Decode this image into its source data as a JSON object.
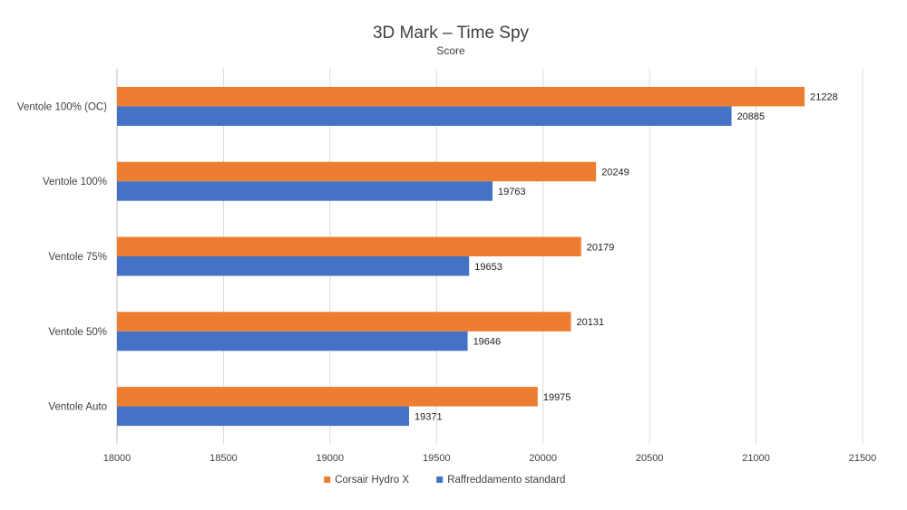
{
  "chart_data": {
    "type": "bar",
    "orientation": "horizontal",
    "title": "3D Mark – Time Spy",
    "subtitle": "Score",
    "categories": [
      "Ventole 100% (OC)",
      "Ventole 100%",
      "Ventole 75%",
      "Ventole 50%",
      "Ventole Auto"
    ],
    "series": [
      {
        "name": "Corsair Hydro X",
        "color": "#ED7D31",
        "values": [
          21228,
          20249,
          20179,
          20131,
          19975
        ]
      },
      {
        "name": "Raffreddamento standard",
        "color": "#4472C4",
        "values": [
          20885,
          19763,
          19653,
          19646,
          19371
        ]
      }
    ],
    "xlim": [
      18000,
      21500
    ],
    "xticks": [
      18000,
      18500,
      19000,
      19500,
      20000,
      20500,
      21000,
      21500
    ],
    "grid": true,
    "legend": "bottom"
  }
}
